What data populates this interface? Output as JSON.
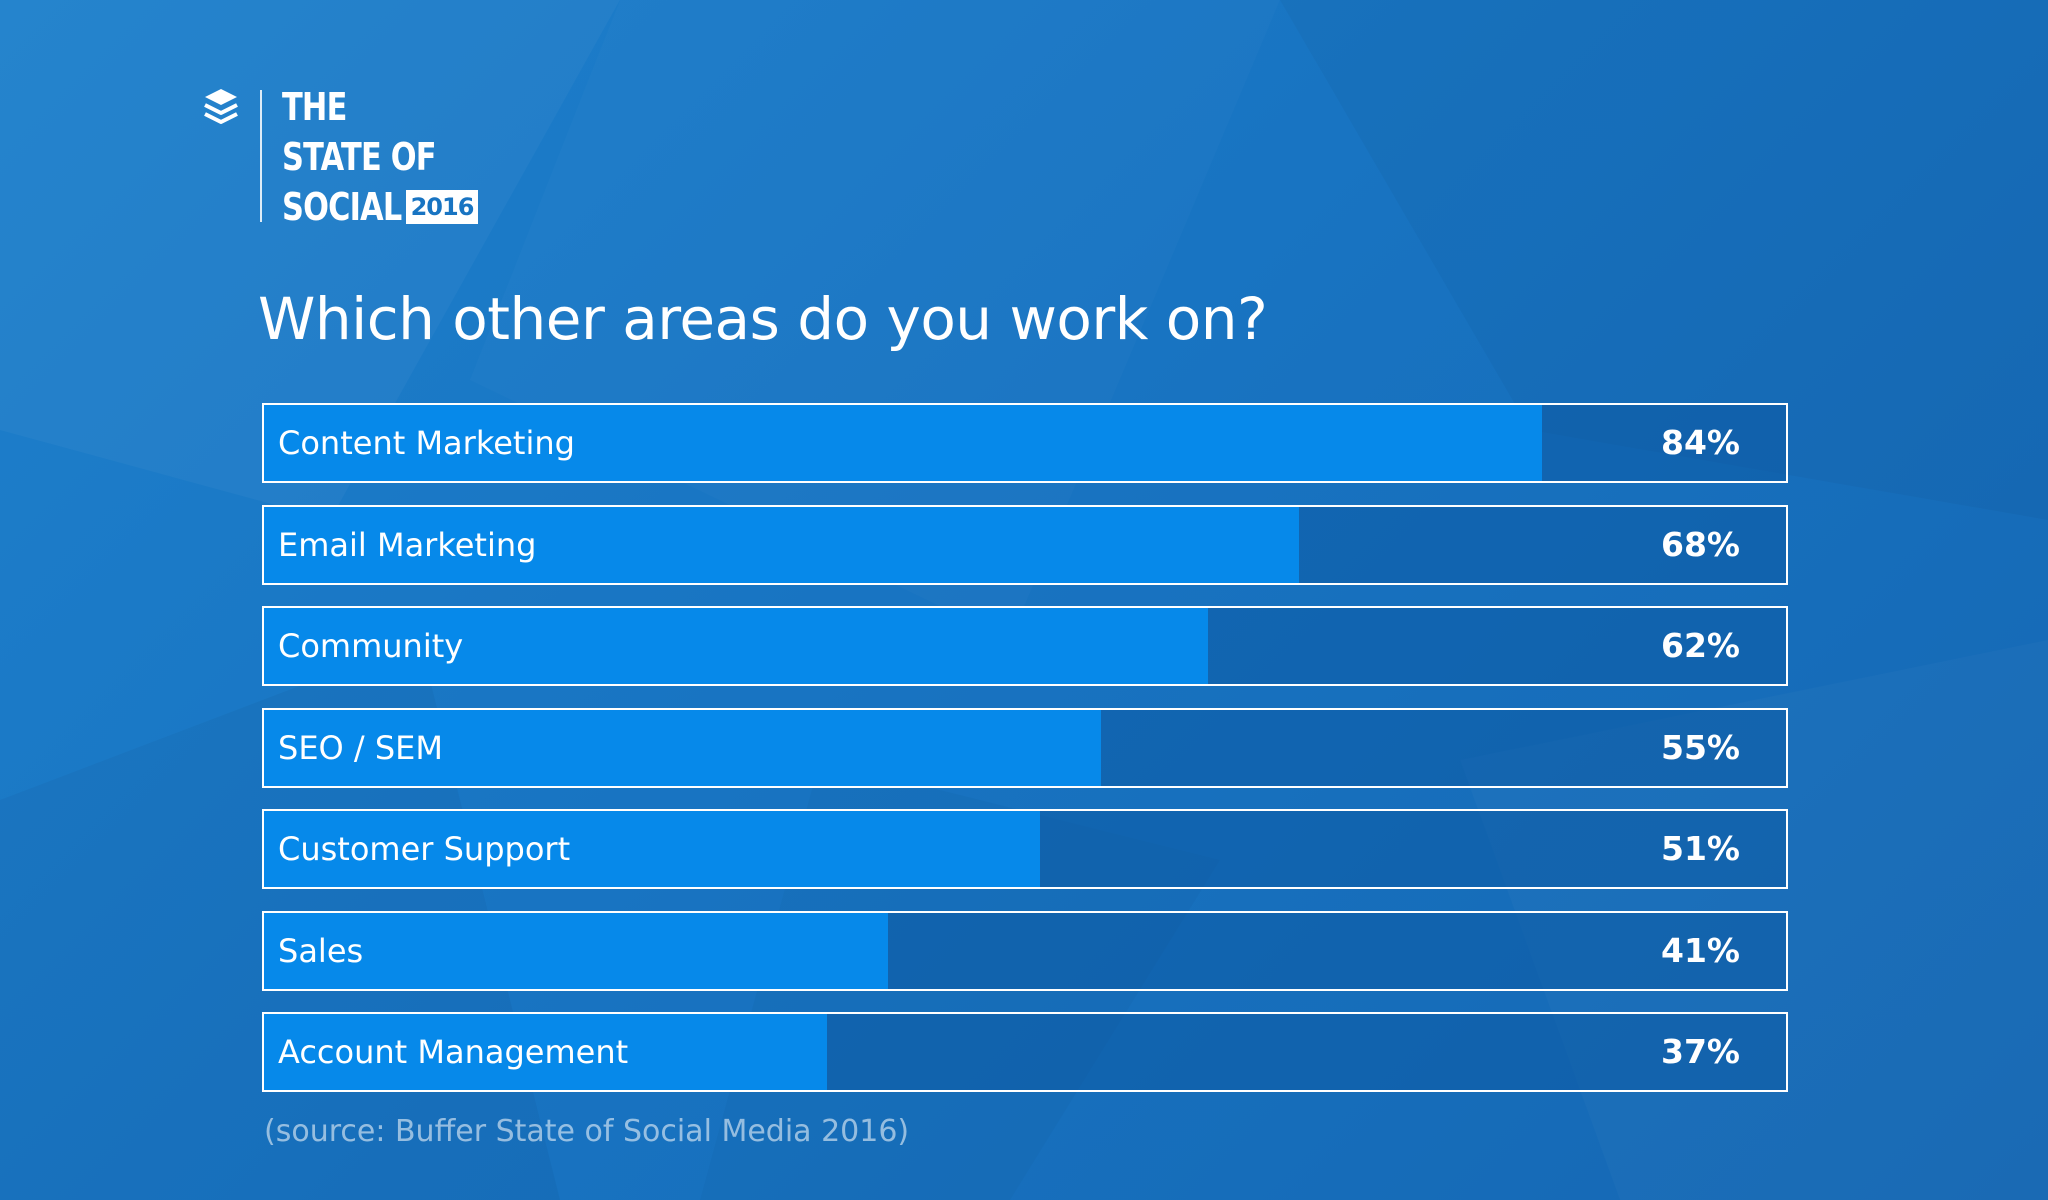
{
  "brand": {
    "logo_icon": "buffer-stack-icon",
    "line1": "THE",
    "line2": "STATE OF",
    "line3": "SOCIAL",
    "year": "2016"
  },
  "colors": {
    "background": "#1874c2",
    "bar_fill": "#0689ea",
    "text": "#ffffff"
  },
  "chart_data": {
    "type": "bar",
    "orientation": "horizontal",
    "title": "Which other areas do you work on?",
    "categories": [
      "Content Marketing",
      "Email Marketing",
      "Community",
      "SEO / SEM",
      "Customer Support",
      "Sales",
      "Account Management"
    ],
    "values": [
      84,
      68,
      62,
      55,
      51,
      41,
      37
    ],
    "value_labels": [
      "84%",
      "68%",
      "62%",
      "55%",
      "51%",
      "41%",
      "37%"
    ],
    "unit": "%",
    "xlim": [
      0,
      100
    ],
    "grid": false,
    "legend": "none"
  },
  "source": "(source: Buffer State of Social Media 2016)"
}
